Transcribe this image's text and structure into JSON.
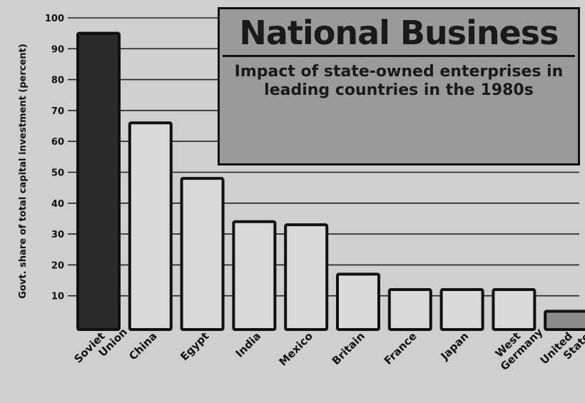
{
  "chart_data": {
    "type": "bar",
    "title": "National Business",
    "subtitle": "Impact of state-owned enterprises in leading countries in the 1980s",
    "ylabel": "Govt. share of total capital investment (percent)",
    "ylim": [
      0,
      100
    ],
    "yticks": [
      10,
      20,
      30,
      40,
      50,
      60,
      70,
      80,
      90,
      100
    ],
    "grid": true,
    "categories": [
      "Soviet Union",
      "China",
      "Egypt",
      "India",
      "Mexico",
      "Britain",
      "France",
      "Japan",
      "West Germany",
      "United States"
    ],
    "category_lines": [
      [
        "Soviet",
        "Union"
      ],
      [
        "China"
      ],
      [
        "Egypt"
      ],
      [
        "India"
      ],
      [
        "Mexico"
      ],
      [
        "Britain"
      ],
      [
        "France"
      ],
      [
        "Japan"
      ],
      [
        "West",
        "Germany"
      ],
      [
        "United",
        "States"
      ]
    ],
    "values": [
      95,
      66,
      48,
      34,
      33,
      17,
      12,
      12,
      12,
      5
    ],
    "colors": [
      "#2b2b2b",
      "#d9d9d9",
      "#d9d9d9",
      "#d9d9d9",
      "#d9d9d9",
      "#d9d9d9",
      "#d9d9d9",
      "#d9d9d9",
      "#d9d9d9",
      "#8c8c8c"
    ]
  }
}
